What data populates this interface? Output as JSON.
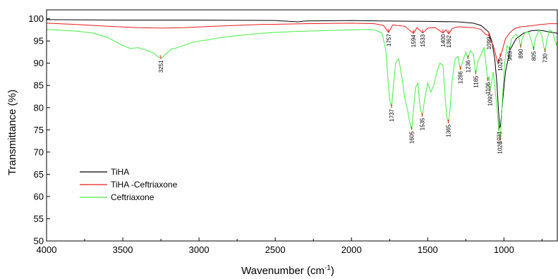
{
  "chart_data": {
    "type": "line",
    "xlabel": "Wavenumber (cm",
    "xlabel_sup": "-1",
    "xlabel_end": ")",
    "ylabel": "Transmittance (%)",
    "xlim": [
      4000,
      650
    ],
    "ylim": [
      50,
      102
    ],
    "x_ticks": [
      4000,
      3500,
      3000,
      2500,
      2000,
      1500,
      1000
    ],
    "y_ticks": [
      50,
      55,
      60,
      65,
      70,
      75,
      80,
      85,
      90,
      95,
      100
    ],
    "grid": false,
    "legend_position": "bottom-left",
    "series": [
      {
        "name": "TiHA",
        "color": "#000000",
        "points": [
          [
            4000,
            99.8
          ],
          [
            3500,
            99.7
          ],
          [
            3000,
            99.7
          ],
          [
            2500,
            99.6
          ],
          [
            2350,
            99.3
          ],
          [
            2300,
            99.5
          ],
          [
            2000,
            99.6
          ],
          [
            1800,
            99.5
          ],
          [
            1500,
            99.4
          ],
          [
            1300,
            99.3
          ],
          [
            1200,
            99.0
          ],
          [
            1150,
            98.5
          ],
          [
            1100,
            97.0
          ],
          [
            1080,
            95.0
          ],
          [
            1060,
            91.0
          ],
          [
            1045,
            85.0
          ],
          [
            1035,
            79.0
          ],
          [
            1028,
            75.5
          ],
          [
            1022,
            76.0
          ],
          [
            1010,
            81.0
          ],
          [
            990,
            88.0
          ],
          [
            960,
            93.0
          ],
          [
            920,
            95.5
          ],
          [
            870,
            96.8
          ],
          [
            820,
            97.3
          ],
          [
            780,
            97.4
          ],
          [
            740,
            97.3
          ],
          [
            700,
            97.0
          ],
          [
            660,
            96.8
          ],
          [
            650,
            96.7
          ]
        ]
      },
      {
        "name": "TiHA -Ceftriaxone",
        "color": "#e81a1a",
        "points": [
          [
            4000,
            99.0
          ],
          [
            3800,
            98.7
          ],
          [
            3600,
            98.3
          ],
          [
            3400,
            98.0
          ],
          [
            3251,
            97.9
          ],
          [
            3100,
            98.0
          ],
          [
            2900,
            98.3
          ],
          [
            2600,
            98.7
          ],
          [
            2300,
            98.9
          ],
          [
            2000,
            99.0
          ],
          [
            1850,
            98.9
          ],
          [
            1790,
            98.5
          ],
          [
            1757,
            96.9
          ],
          [
            1730,
            98.6
          ],
          [
            1650,
            98.3
          ],
          [
            1594,
            96.7
          ],
          [
            1570,
            98.0
          ],
          [
            1533,
            96.8
          ],
          [
            1500,
            97.9
          ],
          [
            1450,
            98.0
          ],
          [
            1400,
            96.8
          ],
          [
            1380,
            97.5
          ],
          [
            1362,
            96.6
          ],
          [
            1340,
            97.8
          ],
          [
            1300,
            98.2
          ],
          [
            1200,
            98.0
          ],
          [
            1150,
            97.6
          ],
          [
            1120,
            96.5
          ],
          [
            1099,
            96.2
          ],
          [
            1085,
            95.0
          ],
          [
            1070,
            94.0
          ],
          [
            1055,
            92.0
          ],
          [
            1040,
            90.0
          ],
          [
            1031,
            91.0
          ],
          [
            1025,
            91.4
          ],
          [
            1010,
            93.0
          ],
          [
            990,
            95.5
          ],
          [
            963,
            96.8
          ],
          [
            930,
            97.8
          ],
          [
            890,
            98.2
          ],
          [
            850,
            98.3
          ],
          [
            805,
            98.5
          ],
          [
            760,
            98.7
          ],
          [
            730,
            98.8
          ],
          [
            700,
            98.9
          ],
          [
            650,
            98.9
          ]
        ]
      },
      {
        "name": "Ceftriaxone",
        "color": "#44ee44",
        "points": [
          [
            4000,
            97.6
          ],
          [
            3900,
            97.4
          ],
          [
            3800,
            97.2
          ],
          [
            3700,
            96.8
          ],
          [
            3600,
            95.8
          ],
          [
            3500,
            94.0
          ],
          [
            3450,
            93.3
          ],
          [
            3400,
            93.5
          ],
          [
            3350,
            93.0
          ],
          [
            3300,
            92.3
          ],
          [
            3251,
            91.0
          ],
          [
            3220,
            92.0
          ],
          [
            3180,
            93.2
          ],
          [
            3150,
            93.4
          ],
          [
            3100,
            94.0
          ],
          [
            3050,
            94.6
          ],
          [
            3000,
            95.0
          ],
          [
            2950,
            95.2
          ],
          [
            2900,
            95.5
          ],
          [
            2800,
            96.0
          ],
          [
            2600,
            96.7
          ],
          [
            2400,
            97.1
          ],
          [
            2200,
            97.3
          ],
          [
            2000,
            97.5
          ],
          [
            1900,
            97.6
          ],
          [
            1850,
            97.5
          ],
          [
            1800,
            96.8
          ],
          [
            1775,
            93.0
          ],
          [
            1760,
            86.0
          ],
          [
            1750,
            82.0
          ],
          [
            1737,
            80.0
          ],
          [
            1725,
            85.0
          ],
          [
            1710,
            90.0
          ],
          [
            1690,
            91.0
          ],
          [
            1670,
            87.0
          ],
          [
            1650,
            82.0
          ],
          [
            1635,
            80.0
          ],
          [
            1620,
            77.0
          ],
          [
            1605,
            75.0
          ],
          [
            1592,
            80.0
          ],
          [
            1580,
            84.5
          ],
          [
            1565,
            85.5
          ],
          [
            1550,
            80.0
          ],
          [
            1535,
            78.0
          ],
          [
            1520,
            82.0
          ],
          [
            1500,
            85.5
          ],
          [
            1480,
            83.5
          ],
          [
            1460,
            85.0
          ],
          [
            1440,
            88.0
          ],
          [
            1420,
            90.0
          ],
          [
            1400,
            89.5
          ],
          [
            1385,
            82.0
          ],
          [
            1375,
            78.0
          ],
          [
            1365,
            76.5
          ],
          [
            1355,
            79.0
          ],
          [
            1340,
            86.0
          ],
          [
            1320,
            91.0
          ],
          [
            1300,
            91.5
          ],
          [
            1286,
            88.5
          ],
          [
            1270,
            90.5
          ],
          [
            1250,
            92.5
          ],
          [
            1236,
            91.0
          ],
          [
            1220,
            92.8
          ],
          [
            1200,
            92.0
          ],
          [
            1185,
            87.5
          ],
          [
            1170,
            90.5
          ],
          [
            1150,
            92.0
          ],
          [
            1130,
            93.5
          ],
          [
            1115,
            89.0
          ],
          [
            1106,
            86.0
          ],
          [
            1098,
            87.0
          ],
          [
            1092,
            83.5
          ],
          [
            1085,
            85.0
          ],
          [
            1070,
            88.0
          ],
          [
            1060,
            85.0
          ],
          [
            1045,
            80.0
          ],
          [
            1035,
            75.0
          ],
          [
            1026,
            72.7
          ],
          [
            1020,
            75.0
          ],
          [
            1010,
            82.0
          ],
          [
            995,
            90.0
          ],
          [
            980,
            94.0
          ],
          [
            963,
            93.0
          ],
          [
            950,
            95.5
          ],
          [
            920,
            96.5
          ],
          [
            900,
            95.5
          ],
          [
            890,
            93.5
          ],
          [
            880,
            95.5
          ],
          [
            860,
            97.0
          ],
          [
            840,
            97.0
          ],
          [
            820,
            95.0
          ],
          [
            805,
            93.0
          ],
          [
            795,
            95.5
          ],
          [
            770,
            97.5
          ],
          [
            750,
            96.0
          ],
          [
            740,
            94.0
          ],
          [
            730,
            92.5
          ],
          [
            720,
            95.0
          ],
          [
            700,
            97.5
          ],
          [
            680,
            97.0
          ],
          [
            665,
            95.0
          ],
          [
            655,
            94.0
          ],
          [
            650,
            95.0
          ]
        ]
      }
    ],
    "peak_labels": [
      {
        "text": "3251",
        "x": 3251,
        "y": 91.0
      },
      {
        "text": "1757",
        "x": 1757,
        "y": 96.9
      },
      {
        "text": "1594",
        "x": 1594,
        "y": 96.7
      },
      {
        "text": "1533",
        "x": 1533,
        "y": 96.8
      },
      {
        "text": "1400",
        "x": 1400,
        "y": 96.8
      },
      {
        "text": "1362",
        "x": 1362,
        "y": 96.6
      },
      {
        "text": "1099",
        "x": 1099,
        "y": 96.2
      },
      {
        "text": "1025",
        "x": 1025,
        "y": 91.4
      },
      {
        "text": "963",
        "x": 963,
        "y": 93.0
      },
      {
        "text": "890",
        "x": 890,
        "y": 93.5
      },
      {
        "text": "805",
        "x": 805,
        "y": 93.0
      },
      {
        "text": "730",
        "x": 730,
        "y": 92.5
      },
      {
        "text": "1737",
        "x": 1737,
        "y": 80.0
      },
      {
        "text": "1605",
        "x": 1605,
        "y": 75.0
      },
      {
        "text": "1535",
        "x": 1535,
        "y": 78.0
      },
      {
        "text": "1365",
        "x": 1365,
        "y": 76.5
      },
      {
        "text": "1286",
        "x": 1286,
        "y": 88.5
      },
      {
        "text": "1236",
        "x": 1236,
        "y": 91.0
      },
      {
        "text": "1185",
        "x": 1185,
        "y": 87.5
      },
      {
        "text": "1106",
        "x": 1106,
        "y": 86.0
      },
      {
        "text": "1092",
        "x": 1092,
        "y": 83.5
      },
      {
        "text": "1031",
        "x": 1031,
        "y": 75.0
      },
      {
        "text": "1026",
        "x": 1026,
        "y": 72.7
      }
    ]
  }
}
